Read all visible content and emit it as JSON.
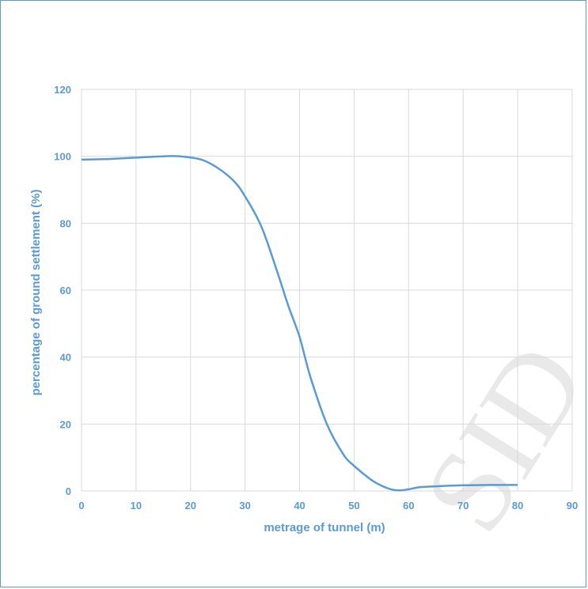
{
  "chart_data": {
    "type": "line",
    "title": "",
    "xlabel": "metrage of tunnel (m)",
    "ylabel": "percentage of ground settlement (%)",
    "xlim": [
      0,
      90
    ],
    "ylim": [
      0,
      120
    ],
    "xticks": [
      0,
      10,
      20,
      30,
      40,
      50,
      60,
      70,
      80,
      90
    ],
    "yticks": [
      0,
      20,
      40,
      60,
      80,
      100,
      120
    ],
    "grid": true,
    "line_color": "#5b9bd5",
    "series": [
      {
        "x": [
          0,
          5,
          10,
          15,
          18,
          22,
          25,
          28,
          30,
          33,
          36,
          38,
          40,
          42,
          45,
          48,
          50,
          53,
          55,
          57,
          58.5,
          60,
          62,
          65,
          70,
          75,
          80
        ],
        "y": [
          99,
          99.2,
          99.6,
          100,
          100,
          99,
          96.5,
          92.5,
          88,
          79,
          65,
          55,
          46,
          34,
          20,
          11,
          7.5,
          3.5,
          1.6,
          0.4,
          0.2,
          0.5,
          1.1,
          1.4,
          1.7,
          1.8,
          1.8
        ]
      }
    ]
  },
  "watermark": "SID"
}
